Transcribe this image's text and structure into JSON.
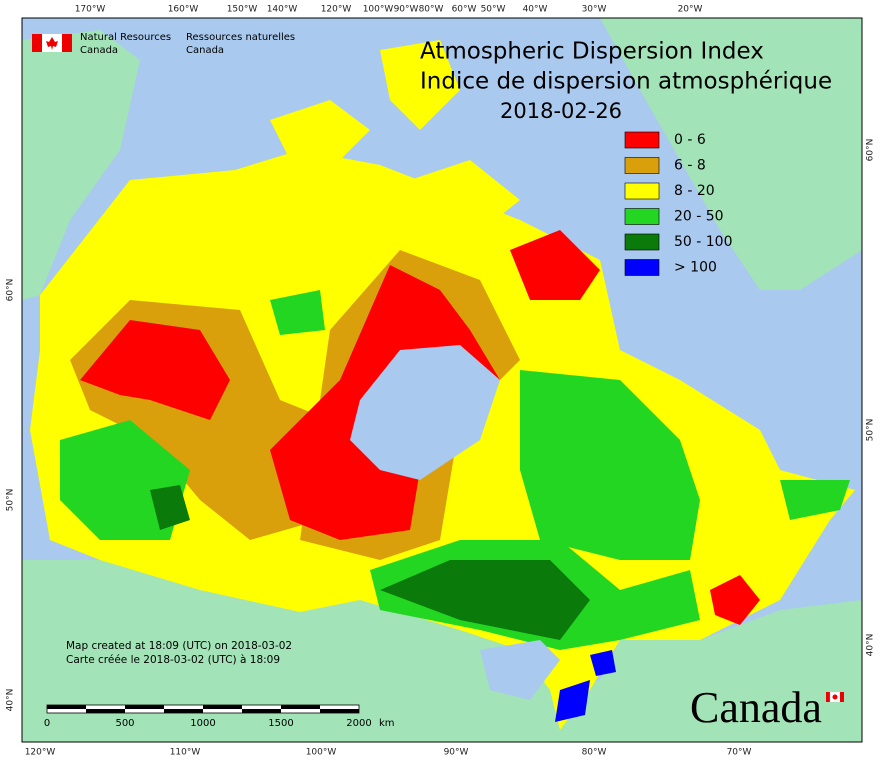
{
  "header": {
    "department_en": [
      "Natural Resources",
      "Canada"
    ],
    "department_fr": [
      "Ressources naturelles",
      "Canada"
    ]
  },
  "title": {
    "lines": [
      "Atmospheric Dispersion Index",
      "Indice de dispersion atmosphérique"
    ],
    "date": "2018-02-26"
  },
  "legend": [
    {
      "label": "0 - 6",
      "color": "#ff0000"
    },
    {
      "label": "6 - 8",
      "color": "#d9a00c"
    },
    {
      "label": "8 - 20",
      "color": "#ffff00"
    },
    {
      "label": "20 - 50",
      "color": "#22d622"
    },
    {
      "label": "50 - 100",
      "color": "#0a7a0a"
    },
    {
      "label": "> 100",
      "color": "#0000ff"
    }
  ],
  "axes": {
    "top": [
      "170°W",
      "160°W",
      "150°W",
      "140°W",
      "120°W",
      "100°W",
      "90°W",
      "80°W",
      "60°W",
      "50°W",
      "40°W",
      "30°W",
      "20°W"
    ],
    "bottom": [
      "120°W",
      "110°W",
      "100°W",
      "90°W",
      "80°W",
      "70°W"
    ],
    "left": [
      "60°N",
      "50°N",
      "40°N"
    ],
    "right": [
      "60°N",
      "50°N",
      "40°N"
    ]
  },
  "scale_bar": {
    "labels": [
      "0",
      "500",
      "1000",
      "1500",
      "2000"
    ],
    "unit": "km"
  },
  "footer": {
    "created": [
      "Map created at 18:09 (UTC) on 2018-03-02",
      "Carte créée le 2018-03-02 (UTC) à 18:09"
    ]
  },
  "wordmark": "Canada"
}
